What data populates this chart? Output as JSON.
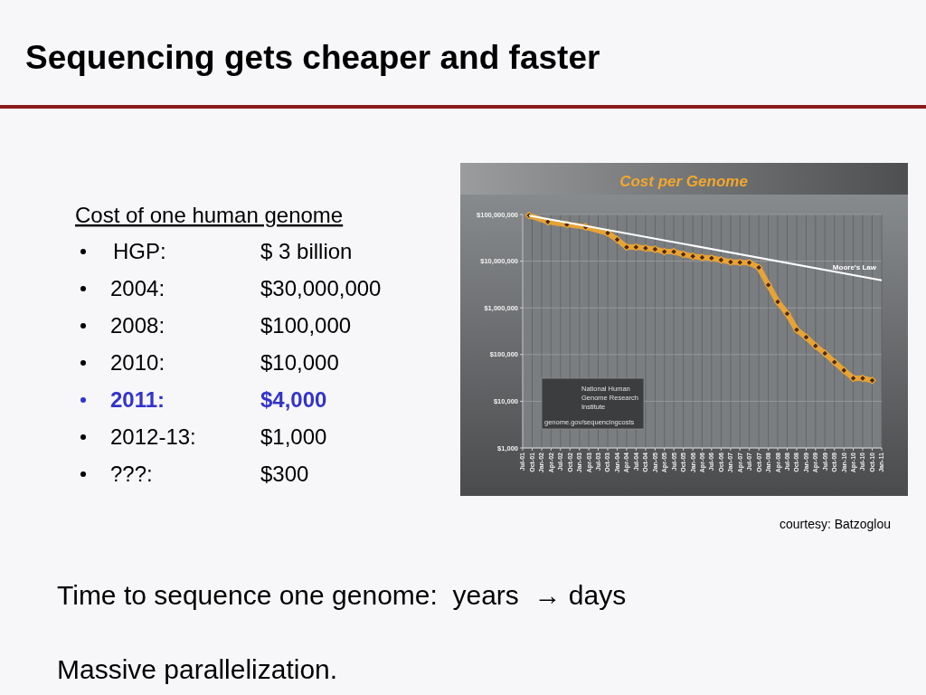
{
  "chart_data": {
    "type": "line",
    "title": "Sequencing gets cheaper and faster",
    "subtitle": "Cost per Genome",
    "annotations": [
      "Cost of one human genome",
      "HGP:",
      "$ 3 billion",
      "2004:",
      "$30,000,000",
      "2008:",
      "$100,000",
      "2010:",
      "$10,000",
      "2011:",
      "$4,000",
      "2012-13:",
      "$1,000",
      "???:",
      "$300",
      "courtesy: Batzoglou",
      "Time to sequence one genome:  years  → days",
      "Massive parallelization.",
      "National Human Genome Research Institute",
      "genome.gov/sequencingcosts"
    ],
    "xlim": [
      "2001-07",
      "2011-01"
    ],
    "xticks": [
      {
        "value": "2001-07",
        "label": "Jul-01"
      },
      {
        "value": "2001-10",
        "label": "Oct-01"
      },
      {
        "value": "2002-01",
        "label": "Jan-02"
      },
      {
        "value": "2002-04",
        "label": "Apr-02"
      },
      {
        "value": "2002-07",
        "label": "Jul-02"
      },
      {
        "value": "2002-10",
        "label": "Oct-02"
      },
      {
        "value": "2003-01",
        "label": "Jan-03"
      },
      {
        "value": "2003-04",
        "label": "Apr-03"
      },
      {
        "value": "2003-07",
        "label": "Jul-03"
      },
      {
        "value": "2003-10",
        "label": "Oct-03"
      },
      {
        "value": "2004-01",
        "label": "Jan-04"
      },
      {
        "value": "2004-04",
        "label": "Apr-04"
      },
      {
        "value": "2004-07",
        "label": "Jul-04"
      },
      {
        "value": "2004-10",
        "label": "Oct-04"
      },
      {
        "value": "2005-01",
        "label": "Jan-05"
      },
      {
        "value": "2005-04",
        "label": "Apr-05"
      },
      {
        "value": "2005-07",
        "label": "Jul-05"
      },
      {
        "value": "2005-10",
        "label": "Oct-05"
      },
      {
        "value": "2006-01",
        "label": "Jan-06"
      },
      {
        "value": "2006-04",
        "label": "Apr-06"
      },
      {
        "value": "2006-07",
        "label": "Jul-06"
      },
      {
        "value": "2006-10",
        "label": "Oct-06"
      },
      {
        "value": "2007-01",
        "label": "Jan-07"
      },
      {
        "value": "2007-04",
        "label": "Apr-07"
      },
      {
        "value": "2007-07",
        "label": "Jul-07"
      },
      {
        "value": "2007-10",
        "label": "Oct-07"
      },
      {
        "value": "2008-01",
        "label": "Jan-08"
      },
      {
        "value": "2008-04",
        "label": "Apr-08"
      },
      {
        "value": "2008-07",
        "label": "Jul-08"
      },
      {
        "value": "2008-10",
        "label": "Oct-08"
      },
      {
        "value": "2009-01",
        "label": "Jan-09"
      },
      {
        "value": "2009-04",
        "label": "Apr-09"
      },
      {
        "value": "2009-07",
        "label": "Jul-09"
      },
      {
        "value": "2009-10",
        "label": "Oct-09"
      },
      {
        "value": "2010-01",
        "label": "Jan-10"
      },
      {
        "value": "2010-04",
        "label": "Apr-10"
      },
      {
        "value": "2010-07",
        "label": "Jul-10"
      },
      {
        "value": "2010-10",
        "label": "Oct-10"
      },
      {
        "value": "2011-01",
        "label": "Jan-11"
      }
    ],
    "ylim": [
      1000,
      100000000
    ],
    "yticks": [
      {
        "value": 1000,
        "label": "$1,000"
      },
      {
        "value": 10000,
        "label": "$10,000"
      },
      {
        "value": 100000,
        "label": "$100,000"
      },
      {
        "value": 1000000,
        "label": "$1,000,000"
      },
      {
        "value": 10000000,
        "label": "$10,000,000"
      },
      {
        "value": 100000000,
        "label": "$100,000,000"
      }
    ],
    "log": "y",
    "grid": true,
    "series": [
      {
        "color": "#f2a72e",
        "marker": "diamond",
        "x": [
          "2001-09",
          "2002-03",
          "2002-09",
          "2003-03",
          "2003-10",
          "2004-01",
          "2004-04",
          "2004-07",
          "2004-10",
          "2005-01",
          "2005-04",
          "2005-07",
          "2005-10",
          "2006-01",
          "2006-04",
          "2006-07",
          "2006-10",
          "2007-01",
          "2007-04",
          "2007-07",
          "2007-10",
          "2008-01",
          "2008-04",
          "2008-07",
          "2008-10",
          "2009-01",
          "2009-04",
          "2009-07",
          "2009-10",
          "2010-01",
          "2010-04",
          "2010-07",
          "2010-10"
        ],
        "values": [
          95000000,
          70000000,
          61000000,
          54000000,
          40000000,
          29000000,
          20000000,
          20000000,
          19000000,
          18000000,
          16000000,
          16000000,
          14000000,
          12700000,
          12000000,
          11600000,
          10600000,
          9600000,
          9400000,
          9300000,
          7300000,
          3100000,
          1350000,
          750000,
          340000,
          235000,
          153000,
          106000,
          69000,
          46000,
          31000,
          31000,
          28000
        ]
      },
      {
        "name": "Moore's Law",
        "color": "#ffffff",
        "marker": "none",
        "x": [
          "2001-09",
          "2011-01"
        ],
        "values": [
          95000000,
          3900000
        ]
      }
    ]
  }
}
